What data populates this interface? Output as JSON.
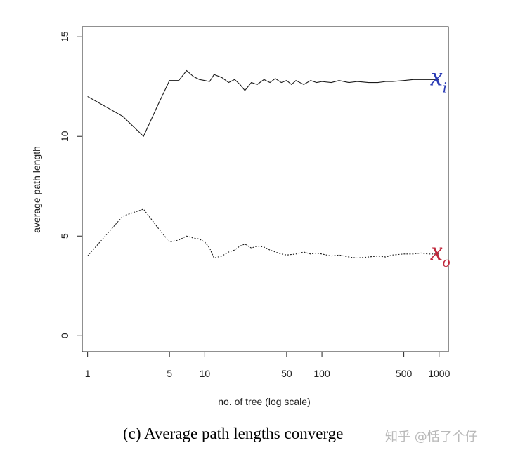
{
  "chart_data": {
    "type": "line",
    "title": "",
    "xlabel": "no. of tree (log scale)",
    "ylabel": "average path length",
    "x_scale": "log",
    "xlim": [
      0.9,
      1200
    ],
    "ylim": [
      -0.8,
      15.5
    ],
    "x_ticks": [
      1,
      5,
      10,
      50,
      100,
      500,
      1000
    ],
    "x_tick_labels": [
      "1",
      "5",
      "10",
      "50",
      "100",
      "500",
      "1000"
    ],
    "y_ticks": [
      0,
      5,
      10,
      15
    ],
    "y_tick_labels": [
      "0",
      "5",
      "10",
      "15"
    ],
    "grid": false,
    "series": [
      {
        "name": "x_i",
        "label_main": "x",
        "label_sub": "i",
        "label_color": "#2a3bb5",
        "line_color": "#1a1a1a",
        "dash": "solid",
        "points": [
          [
            1,
            12.0
          ],
          [
            2,
            11.0
          ],
          [
            3,
            10.0
          ],
          [
            4,
            11.6
          ],
          [
            5,
            12.8
          ],
          [
            6,
            12.8
          ],
          [
            7,
            13.3
          ],
          [
            8,
            13.0
          ],
          [
            9,
            12.85
          ],
          [
            10,
            12.8
          ],
          [
            11,
            12.75
          ],
          [
            12,
            13.1
          ],
          [
            14,
            12.95
          ],
          [
            16,
            12.7
          ],
          [
            18,
            12.85
          ],
          [
            20,
            12.6
          ],
          [
            22,
            12.3
          ],
          [
            25,
            12.7
          ],
          [
            28,
            12.6
          ],
          [
            32,
            12.85
          ],
          [
            36,
            12.7
          ],
          [
            40,
            12.9
          ],
          [
            45,
            12.7
          ],
          [
            50,
            12.8
          ],
          [
            55,
            12.6
          ],
          [
            60,
            12.8
          ],
          [
            70,
            12.6
          ],
          [
            80,
            12.8
          ],
          [
            90,
            12.7
          ],
          [
            100,
            12.75
          ],
          [
            120,
            12.7
          ],
          [
            140,
            12.8
          ],
          [
            170,
            12.7
          ],
          [
            200,
            12.75
          ],
          [
            250,
            12.7
          ],
          [
            300,
            12.7
          ],
          [
            350,
            12.75
          ],
          [
            400,
            12.75
          ],
          [
            500,
            12.8
          ],
          [
            600,
            12.85
          ],
          [
            700,
            12.85
          ],
          [
            800,
            12.85
          ],
          [
            900,
            12.85
          ],
          [
            1000,
            12.85
          ]
        ]
      },
      {
        "name": "x_o",
        "label_main": "x",
        "label_sub": "o",
        "label_color": "#c0283c",
        "line_color": "#1a1a1a",
        "dash": "dotted",
        "points": [
          [
            1,
            4.0
          ],
          [
            2,
            6.0
          ],
          [
            3,
            6.35
          ],
          [
            4,
            5.4
          ],
          [
            5,
            4.7
          ],
          [
            6,
            4.8
          ],
          [
            7,
            5.0
          ],
          [
            8,
            4.9
          ],
          [
            9,
            4.85
          ],
          [
            10,
            4.7
          ],
          [
            11,
            4.4
          ],
          [
            12,
            3.9
          ],
          [
            14,
            4.0
          ],
          [
            16,
            4.2
          ],
          [
            18,
            4.3
          ],
          [
            20,
            4.5
          ],
          [
            22,
            4.6
          ],
          [
            25,
            4.4
          ],
          [
            28,
            4.5
          ],
          [
            32,
            4.45
          ],
          [
            36,
            4.3
          ],
          [
            40,
            4.2
          ],
          [
            45,
            4.1
          ],
          [
            50,
            4.05
          ],
          [
            60,
            4.1
          ],
          [
            70,
            4.2
          ],
          [
            80,
            4.1
          ],
          [
            90,
            4.15
          ],
          [
            100,
            4.1
          ],
          [
            120,
            4.0
          ],
          [
            140,
            4.05
          ],
          [
            170,
            3.95
          ],
          [
            200,
            3.9
          ],
          [
            250,
            3.95
          ],
          [
            300,
            4.0
          ],
          [
            350,
            3.95
          ],
          [
            400,
            4.05
          ],
          [
            500,
            4.1
          ],
          [
            600,
            4.1
          ],
          [
            700,
            4.15
          ],
          [
            800,
            4.1
          ],
          [
            900,
            4.1
          ],
          [
            1000,
            4.1
          ]
        ]
      }
    ]
  },
  "caption": "(c) Average path lengths converge",
  "watermark": "知乎 @恬了个仔"
}
